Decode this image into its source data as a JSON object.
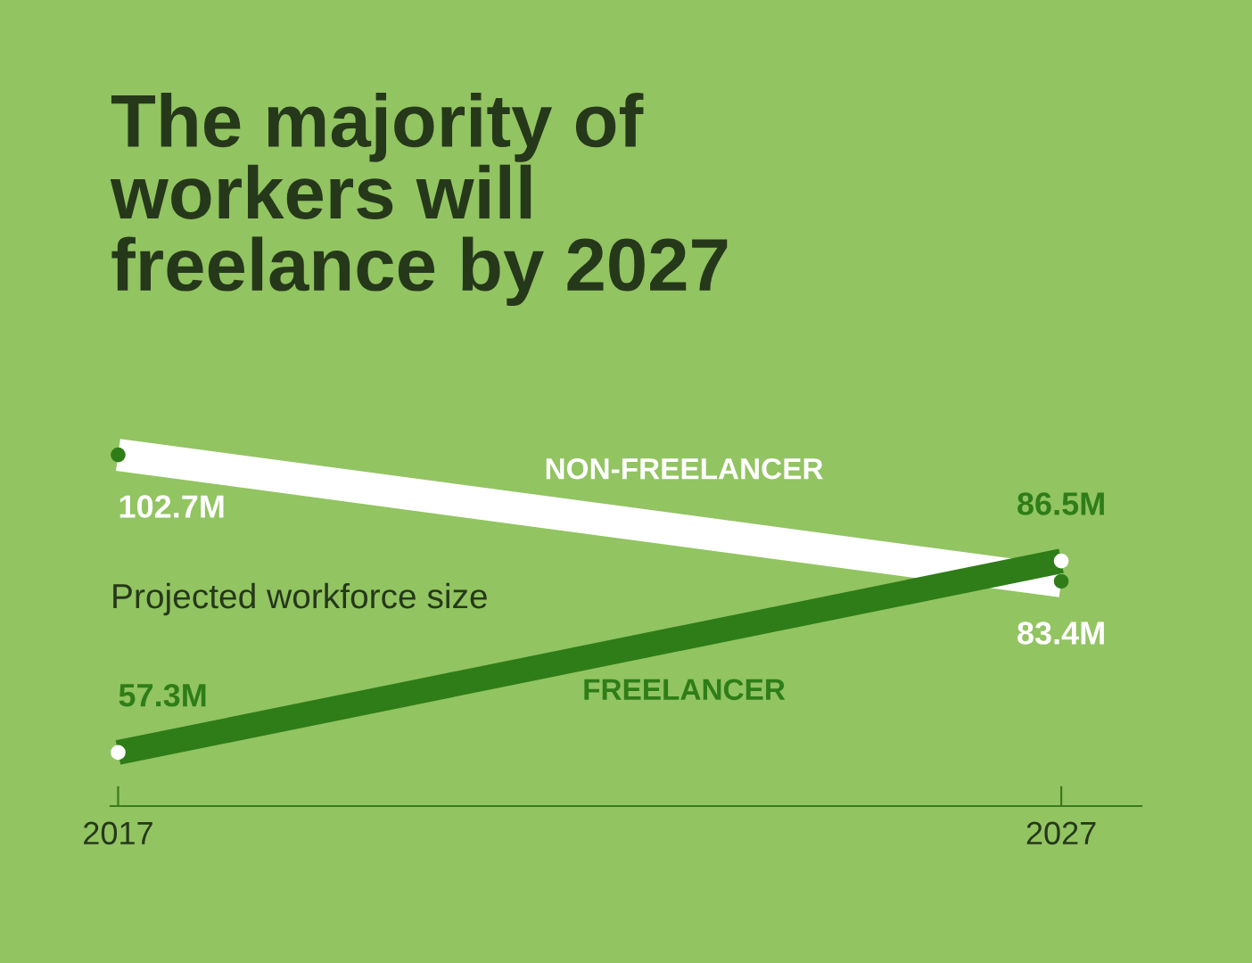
{
  "chart_data": {
    "type": "line",
    "title": "The majority of\nworkers will\nfreelance by 2027",
    "x": [
      2017,
      2027
    ],
    "xlim": [
      2016.92,
      2027.85
    ],
    "xticks": [
      2017,
      2027
    ],
    "series": [
      {
        "name": "NON-FREELANCER",
        "color": "#ffffff",
        "values": [
          102.7,
          83.4
        ],
        "value_labels": [
          "102.7M",
          "83.4M"
        ]
      },
      {
        "name": "FREELANCER",
        "color": "#2f7d18",
        "values": [
          57.3,
          86.5
        ],
        "value_labels": [
          "57.3M",
          "86.5M"
        ]
      }
    ],
    "annotations": [
      "Projected workforce size"
    ],
    "marker": "circle",
    "grid": false,
    "legend": false
  }
}
